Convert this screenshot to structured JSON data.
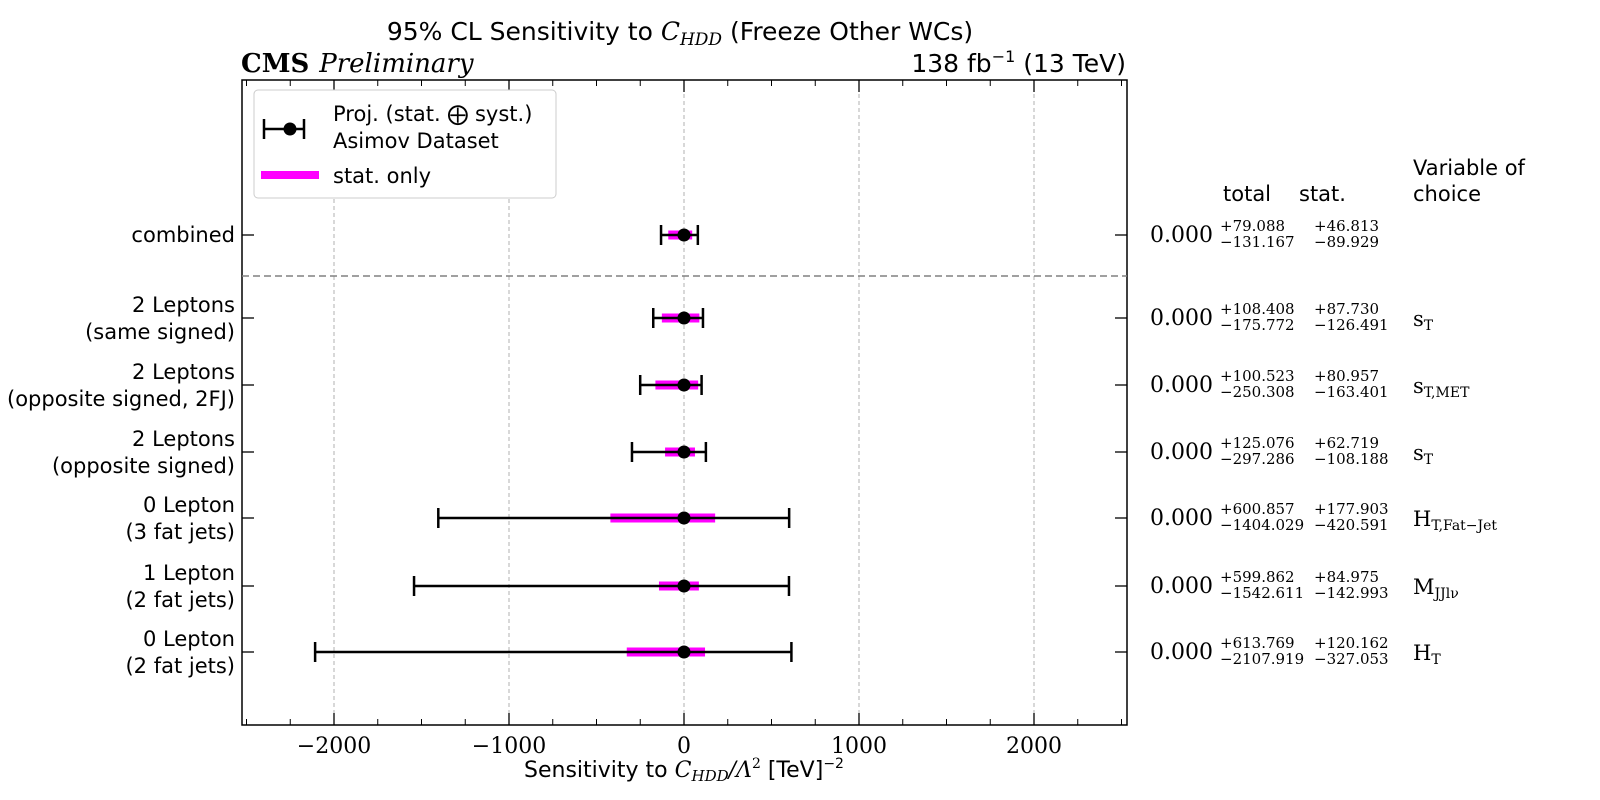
{
  "header": {
    "title_prefix": "95% CL Sensitivity to ",
    "title_var": "C",
    "title_var_sub": "HDD",
    "title_suffix": " (Freeze Other WCs)",
    "cms_label": "CMS",
    "cms_sub": "Preliminary",
    "lumi": "138 fb",
    "lumi_exp": "−1",
    "energy": " (13 TeV)"
  },
  "legend": {
    "entry1_line1": "Proj. (stat. ⨁ syst.)",
    "entry1_line2": "Asimov Dataset",
    "entry2": "stat. only"
  },
  "table_headers": {
    "total": "total",
    "stat": "stat.",
    "variable_line1": "Variable of",
    "variable_line2": "choice"
  },
  "colors": {
    "stat_band": "#ff00ff",
    "total_bar": "#000000",
    "grid": "#b0b0b0",
    "separator": "#808080"
  },
  "chart_data": {
    "type": "errorbar",
    "title": "95% CL Sensitivity to C_HDD (Freeze Other WCs)",
    "xlabel": "Sensitivity to C_HDD/Λ² [TeV]⁻²",
    "xlim": [
      -2520,
      2520
    ],
    "xticks": [
      -2000,
      -1000,
      0,
      1000,
      2000
    ],
    "xtick_labels": [
      "−2000",
      "−1000",
      "0",
      "1000",
      "2000"
    ],
    "grid": true,
    "legend_position": "top-left",
    "rows": [
      {
        "label": [
          "combined"
        ],
        "best": 0.0,
        "best_text": "0.000",
        "total_plus": 79.088,
        "total_minus": 131.167,
        "stat_plus": 46.813,
        "stat_minus": 89.929,
        "total_plus_text": "+79.088",
        "total_minus_text": "−131.167",
        "stat_plus_text": "+46.813",
        "stat_minus_text": "−89.929",
        "variable": "",
        "variable_sub": ""
      },
      {
        "label": [
          "2 Leptons",
          "(same signed)"
        ],
        "best": 0.0,
        "best_text": "0.000",
        "total_plus": 108.408,
        "total_minus": 175.772,
        "stat_plus": 87.73,
        "stat_minus": 126.491,
        "total_plus_text": "+108.408",
        "total_minus_text": "−175.772",
        "stat_plus_text": "+87.730",
        "stat_minus_text": "−126.491",
        "variable": "s",
        "variable_sub": "T"
      },
      {
        "label": [
          "2 Leptons",
          "(opposite signed, 2FJ)"
        ],
        "best": 0.0,
        "best_text": "0.000",
        "total_plus": 100.523,
        "total_minus": 250.308,
        "stat_plus": 80.957,
        "stat_minus": 163.401,
        "total_plus_text": "+100.523",
        "total_minus_text": "−250.308",
        "stat_plus_text": "+80.957",
        "stat_minus_text": "−163.401",
        "variable": "s",
        "variable_sub": "T,MET"
      },
      {
        "label": [
          "2 Leptons",
          "(opposite signed)"
        ],
        "best": 0.0,
        "best_text": "0.000",
        "total_plus": 125.076,
        "total_minus": 297.286,
        "stat_plus": 62.719,
        "stat_minus": 108.188,
        "total_plus_text": "+125.076",
        "total_minus_text": "−297.286",
        "stat_plus_text": "+62.719",
        "stat_minus_text": "−108.188",
        "variable": "s",
        "variable_sub": "T"
      },
      {
        "label": [
          "0 Lepton",
          "(3 fat jets)"
        ],
        "best": 0.0,
        "best_text": "0.000",
        "total_plus": 600.857,
        "total_minus": 1404.029,
        "stat_plus": 177.903,
        "stat_minus": 420.591,
        "total_plus_text": "+600.857",
        "total_minus_text": "−1404.029",
        "stat_plus_text": "+177.903",
        "stat_minus_text": "−420.591",
        "variable": "H",
        "variable_sub": "T,Fat−Jet"
      },
      {
        "label": [
          "1 Lepton",
          "(2 fat jets)"
        ],
        "best": 0.0,
        "best_text": "0.000",
        "total_plus": 599.862,
        "total_minus": 1542.611,
        "stat_plus": 84.975,
        "stat_minus": 142.993,
        "total_plus_text": "+599.862",
        "total_minus_text": "−1542.611",
        "stat_plus_text": "+84.975",
        "stat_minus_text": "−142.993",
        "variable": "M",
        "variable_sub": "JJlν"
      },
      {
        "label": [
          "0 Lepton",
          "(2 fat jets)"
        ],
        "best": 0.0,
        "best_text": "0.000",
        "total_plus": 613.769,
        "total_minus": 2107.919,
        "stat_plus": 120.162,
        "stat_minus": 327.053,
        "total_plus_text": "+613.769",
        "total_minus_text": "−2107.919",
        "stat_plus_text": "+120.162",
        "stat_minus_text": "−327.053",
        "variable": "H",
        "variable_sub": "T"
      }
    ]
  }
}
